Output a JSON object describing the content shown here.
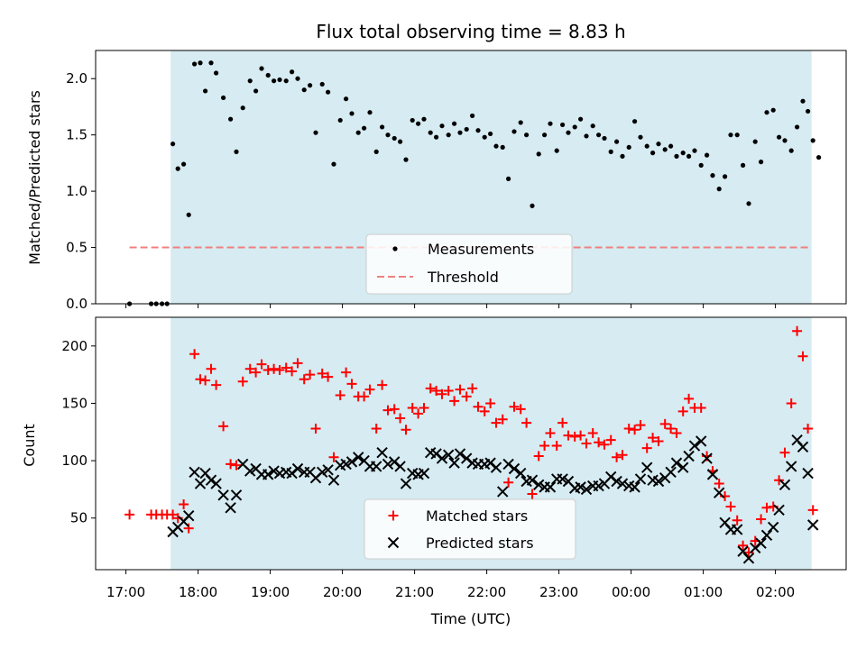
{
  "chart_data": {
    "type": "scatter",
    "title": "Flux total observing time = 8.83 h",
    "xlabel": "Time (UTC)",
    "x_ticks": [
      {
        "label": "17:00",
        "h": 17.0
      },
      {
        "label": "18:00",
        "h": 18.0
      },
      {
        "label": "19:00",
        "h": 19.0
      },
      {
        "label": "20:00",
        "h": 20.0
      },
      {
        "label": "21:00",
        "h": 21.0
      },
      {
        "label": "22:00",
        "h": 22.0
      },
      {
        "label": "23:00",
        "h": 23.0
      },
      {
        "label": "00:00",
        "h": 24.0
      },
      {
        "label": "01:00",
        "h": 25.0
      },
      {
        "label": "02:00",
        "h": 26.0
      }
    ],
    "xlim": [
      16.58,
      26.98
    ],
    "shaded_span": {
      "start": 17.62,
      "end": 26.5,
      "color": "#add8e6"
    },
    "top": {
      "ylabel": "Matched/Predicted stars",
      "ylim": [
        0,
        2.25
      ],
      "yticks": [
        "0.0",
        "0.5",
        "1.0",
        "1.5",
        "2.0"
      ],
      "threshold": {
        "value": 0.5,
        "from": 17.05,
        "to": 26.5,
        "color": "#f08080"
      },
      "legend": [
        "Measurements",
        "Threshold"
      ],
      "measurements": [
        [
          17.05,
          0.0
        ],
        [
          17.35,
          0.0
        ],
        [
          17.42,
          0.0
        ],
        [
          17.5,
          0.0
        ],
        [
          17.57,
          0.0
        ],
        [
          17.65,
          1.42
        ],
        [
          17.72,
          1.2
        ],
        [
          17.8,
          1.24
        ],
        [
          17.87,
          0.79
        ],
        [
          17.95,
          2.13
        ],
        [
          18.03,
          2.14
        ],
        [
          18.1,
          1.89
        ],
        [
          18.18,
          2.14
        ],
        [
          18.25,
          2.05
        ],
        [
          18.35,
          1.83
        ],
        [
          18.45,
          1.64
        ],
        [
          18.53,
          1.35
        ],
        [
          18.62,
          1.74
        ],
        [
          18.72,
          1.98
        ],
        [
          18.8,
          1.89
        ],
        [
          18.88,
          2.09
        ],
        [
          18.97,
          2.03
        ],
        [
          19.05,
          1.98
        ],
        [
          19.13,
          1.99
        ],
        [
          19.22,
          1.98
        ],
        [
          19.3,
          2.06
        ],
        [
          19.38,
          2.0
        ],
        [
          19.47,
          1.9
        ],
        [
          19.55,
          1.94
        ],
        [
          19.63,
          1.52
        ],
        [
          19.72,
          1.95
        ],
        [
          19.8,
          1.88
        ],
        [
          19.88,
          1.24
        ],
        [
          19.97,
          1.63
        ],
        [
          20.05,
          1.82
        ],
        [
          20.13,
          1.69
        ],
        [
          20.22,
          1.52
        ],
        [
          20.3,
          1.56
        ],
        [
          20.38,
          1.7
        ],
        [
          20.47,
          1.35
        ],
        [
          20.55,
          1.57
        ],
        [
          20.63,
          1.5
        ],
        [
          20.72,
          1.47
        ],
        [
          20.8,
          1.44
        ],
        [
          20.88,
          1.28
        ],
        [
          20.97,
          1.63
        ],
        [
          21.05,
          1.6
        ],
        [
          21.13,
          1.64
        ],
        [
          21.22,
          1.52
        ],
        [
          21.3,
          1.48
        ],
        [
          21.38,
          1.58
        ],
        [
          21.47,
          1.5
        ],
        [
          21.55,
          1.6
        ],
        [
          21.63,
          1.52
        ],
        [
          21.72,
          1.55
        ],
        [
          21.8,
          1.67
        ],
        [
          21.88,
          1.54
        ],
        [
          21.97,
          1.48
        ],
        [
          22.05,
          1.51
        ],
        [
          22.13,
          1.4
        ],
        [
          22.22,
          1.39
        ],
        [
          22.3,
          1.11
        ],
        [
          22.38,
          1.53
        ],
        [
          22.47,
          1.61
        ],
        [
          22.55,
          1.5
        ],
        [
          22.63,
          0.87
        ],
        [
          22.72,
          1.33
        ],
        [
          22.8,
          1.5
        ],
        [
          22.88,
          1.6
        ],
        [
          22.97,
          1.36
        ],
        [
          23.05,
          1.59
        ],
        [
          23.13,
          1.52
        ],
        [
          23.22,
          1.57
        ],
        [
          23.3,
          1.64
        ],
        [
          23.38,
          1.49
        ],
        [
          23.47,
          1.58
        ],
        [
          23.55,
          1.5
        ],
        [
          23.63,
          1.47
        ],
        [
          23.72,
          1.35
        ],
        [
          23.8,
          1.44
        ],
        [
          23.88,
          1.31
        ],
        [
          23.97,
          1.39
        ],
        [
          24.05,
          1.62
        ],
        [
          24.13,
          1.48
        ],
        [
          24.22,
          1.4
        ],
        [
          24.3,
          1.34
        ],
        [
          24.38,
          1.42
        ],
        [
          24.47,
          1.37
        ],
        [
          24.55,
          1.4
        ],
        [
          24.63,
          1.31
        ],
        [
          24.72,
          1.34
        ],
        [
          24.8,
          1.31
        ],
        [
          24.88,
          1.36
        ],
        [
          24.97,
          1.23
        ],
        [
          25.05,
          1.32
        ],
        [
          25.13,
          1.14
        ],
        [
          25.22,
          1.02
        ],
        [
          25.3,
          1.13
        ],
        [
          25.38,
          1.5
        ],
        [
          25.47,
          1.5
        ],
        [
          25.55,
          1.23
        ],
        [
          25.63,
          0.89
        ],
        [
          25.72,
          1.44
        ],
        [
          25.8,
          1.26
        ],
        [
          25.88,
          1.7
        ],
        [
          25.97,
          1.72
        ],
        [
          26.05,
          1.48
        ],
        [
          26.13,
          1.45
        ],
        [
          26.22,
          1.36
        ],
        [
          26.3,
          1.57
        ],
        [
          26.38,
          1.8
        ],
        [
          26.45,
          1.71
        ],
        [
          26.52,
          1.45
        ],
        [
          26.6,
          1.3
        ]
      ]
    },
    "bottom": {
      "ylabel": "Count",
      "ylim": [
        5,
        225
      ],
      "yticks": [
        "50",
        "100",
        "150",
        "200"
      ],
      "legend": [
        "Matched stars",
        "Predicted stars"
      ],
      "matched": [
        [
          17.05,
          53
        ],
        [
          17.35,
          53
        ],
        [
          17.42,
          53
        ],
        [
          17.5,
          53
        ],
        [
          17.57,
          53
        ],
        [
          17.65,
          53
        ],
        [
          17.72,
          50
        ],
        [
          17.8,
          62
        ],
        [
          17.87,
          41
        ],
        [
          17.95,
          193
        ],
        [
          18.03,
          171
        ],
        [
          18.1,
          170
        ],
        [
          18.18,
          180
        ],
        [
          18.25,
          166
        ],
        [
          18.35,
          130
        ],
        [
          18.45,
          97
        ],
        [
          18.53,
          96
        ],
        [
          18.62,
          169
        ],
        [
          18.72,
          180
        ],
        [
          18.8,
          177
        ],
        [
          18.88,
          184
        ],
        [
          18.97,
          179
        ],
        [
          19.05,
          180
        ],
        [
          19.13,
          179
        ],
        [
          19.22,
          181
        ],
        [
          19.3,
          178
        ],
        [
          19.38,
          185
        ],
        [
          19.47,
          171
        ],
        [
          19.55,
          175
        ],
        [
          19.63,
          128
        ],
        [
          19.72,
          176
        ],
        [
          19.8,
          173
        ],
        [
          19.88,
          103
        ],
        [
          19.97,
          157
        ],
        [
          20.05,
          177
        ],
        [
          20.13,
          167
        ],
        [
          20.22,
          156
        ],
        [
          20.3,
          156
        ],
        [
          20.38,
          162
        ],
        [
          20.47,
          128
        ],
        [
          20.55,
          166
        ],
        [
          20.63,
          144
        ],
        [
          20.72,
          145
        ],
        [
          20.8,
          137
        ],
        [
          20.88,
          127
        ],
        [
          20.97,
          146
        ],
        [
          21.05,
          141
        ],
        [
          21.13,
          146
        ],
        [
          21.22,
          163
        ],
        [
          21.3,
          161
        ],
        [
          21.38,
          158
        ],
        [
          21.47,
          161
        ],
        [
          21.55,
          152
        ],
        [
          21.63,
          162
        ],
        [
          21.72,
          156
        ],
        [
          21.8,
          163
        ],
        [
          21.88,
          147
        ],
        [
          21.97,
          143
        ],
        [
          22.05,
          150
        ],
        [
          22.13,
          133
        ],
        [
          22.22,
          136
        ],
        [
          22.3,
          81
        ],
        [
          22.38,
          147
        ],
        [
          22.47,
          145
        ],
        [
          22.55,
          133
        ],
        [
          22.63,
          71
        ],
        [
          22.72,
          104
        ],
        [
          22.8,
          113
        ],
        [
          22.88,
          124
        ],
        [
          22.97,
          113
        ],
        [
          23.05,
          133
        ],
        [
          23.13,
          122
        ],
        [
          23.22,
          121
        ],
        [
          23.3,
          122
        ],
        [
          23.38,
          115
        ],
        [
          23.47,
          124
        ],
        [
          23.55,
          116
        ],
        [
          23.63,
          114
        ],
        [
          23.72,
          118
        ],
        [
          23.8,
          103
        ],
        [
          23.88,
          105
        ],
        [
          23.97,
          128
        ],
        [
          24.05,
          127
        ],
        [
          24.13,
          131
        ],
        [
          24.22,
          111
        ],
        [
          24.3,
          120
        ],
        [
          24.38,
          117
        ],
        [
          24.47,
          132
        ],
        [
          24.55,
          128
        ],
        [
          24.63,
          124
        ],
        [
          24.72,
          143
        ],
        [
          24.8,
          154
        ],
        [
          24.88,
          146
        ],
        [
          24.97,
          146
        ],
        [
          25.05,
          104
        ],
        [
          25.13,
          91
        ],
        [
          25.22,
          80
        ],
        [
          25.3,
          69
        ],
        [
          25.38,
          60
        ],
        [
          25.47,
          48
        ],
        [
          25.55,
          26
        ],
        [
          25.63,
          20
        ],
        [
          25.72,
          30
        ],
        [
          25.8,
          49
        ],
        [
          25.88,
          59
        ],
        [
          25.97,
          60
        ],
        [
          26.05,
          83
        ],
        [
          26.13,
          107
        ],
        [
          26.22,
          150
        ],
        [
          26.3,
          213
        ],
        [
          26.38,
          191
        ],
        [
          26.45,
          128
        ],
        [
          26.52,
          57
        ]
      ],
      "predicted": [
        [
          17.65,
          38
        ],
        [
          17.72,
          42
        ],
        [
          17.8,
          47
        ],
        [
          17.87,
          52
        ],
        [
          17.95,
          90
        ],
        [
          18.03,
          80
        ],
        [
          18.1,
          89
        ],
        [
          18.18,
          83
        ],
        [
          18.25,
          80
        ],
        [
          18.35,
          70
        ],
        [
          18.45,
          59
        ],
        [
          18.53,
          70
        ],
        [
          18.62,
          97
        ],
        [
          18.72,
          91
        ],
        [
          18.8,
          93
        ],
        [
          18.88,
          88
        ],
        [
          18.97,
          88
        ],
        [
          19.05,
          91
        ],
        [
          19.13,
          89
        ],
        [
          19.22,
          90
        ],
        [
          19.3,
          89
        ],
        [
          19.38,
          93
        ],
        [
          19.47,
          90
        ],
        [
          19.55,
          90
        ],
        [
          19.63,
          85
        ],
        [
          19.72,
          90
        ],
        [
          19.8,
          92
        ],
        [
          19.88,
          83
        ],
        [
          19.97,
          96
        ],
        [
          20.05,
          97
        ],
        [
          20.13,
          99
        ],
        [
          20.22,
          103
        ],
        [
          20.3,
          100
        ],
        [
          20.38,
          95
        ],
        [
          20.47,
          95
        ],
        [
          20.55,
          107
        ],
        [
          20.63,
          97
        ],
        [
          20.72,
          99
        ],
        [
          20.8,
          95
        ],
        [
          20.88,
          80
        ],
        [
          20.97,
          89
        ],
        [
          21.05,
          88
        ],
        [
          21.13,
          89
        ],
        [
          21.22,
          107
        ],
        [
          21.3,
          106
        ],
        [
          21.38,
          102
        ],
        [
          21.47,
          105
        ],
        [
          21.55,
          98
        ],
        [
          21.63,
          106
        ],
        [
          21.72,
          102
        ],
        [
          21.8,
          98
        ],
        [
          21.88,
          97
        ],
        [
          21.97,
          97
        ],
        [
          22.05,
          98
        ],
        [
          22.13,
          94
        ],
        [
          22.22,
          73
        ],
        [
          22.3,
          97
        ],
        [
          22.38,
          93
        ],
        [
          22.47,
          89
        ],
        [
          22.55,
          82
        ],
        [
          22.63,
          83
        ],
        [
          22.72,
          79
        ],
        [
          22.8,
          77
        ],
        [
          22.88,
          77
        ],
        [
          22.97,
          84
        ],
        [
          23.05,
          84
        ],
        [
          23.13,
          82
        ],
        [
          23.22,
          76
        ],
        [
          23.3,
          77
        ],
        [
          23.38,
          75
        ],
        [
          23.47,
          78
        ],
        [
          23.55,
          78
        ],
        [
          23.63,
          80
        ],
        [
          23.72,
          86
        ],
        [
          23.8,
          82
        ],
        [
          23.88,
          80
        ],
        [
          23.97,
          78
        ],
        [
          24.05,
          77
        ],
        [
          24.13,
          84
        ],
        [
          24.22,
          94
        ],
        [
          24.3,
          83
        ],
        [
          24.38,
          82
        ],
        [
          24.47,
          85
        ],
        [
          24.55,
          90
        ],
        [
          24.63,
          98
        ],
        [
          24.72,
          94
        ],
        [
          24.8,
          104
        ],
        [
          24.88,
          113
        ],
        [
          24.97,
          117
        ],
        [
          25.05,
          102
        ],
        [
          25.13,
          88
        ],
        [
          25.22,
          72
        ],
        [
          25.3,
          46
        ],
        [
          25.38,
          40
        ],
        [
          25.47,
          40
        ],
        [
          25.55,
          21
        ],
        [
          25.63,
          15
        ],
        [
          25.72,
          24
        ],
        [
          25.8,
          28
        ],
        [
          25.88,
          35
        ],
        [
          25.97,
          42
        ],
        [
          26.05,
          57
        ],
        [
          26.13,
          79
        ],
        [
          26.22,
          95
        ],
        [
          26.3,
          118
        ],
        [
          26.38,
          112
        ],
        [
          26.45,
          89
        ],
        [
          26.52,
          44
        ]
      ]
    }
  }
}
